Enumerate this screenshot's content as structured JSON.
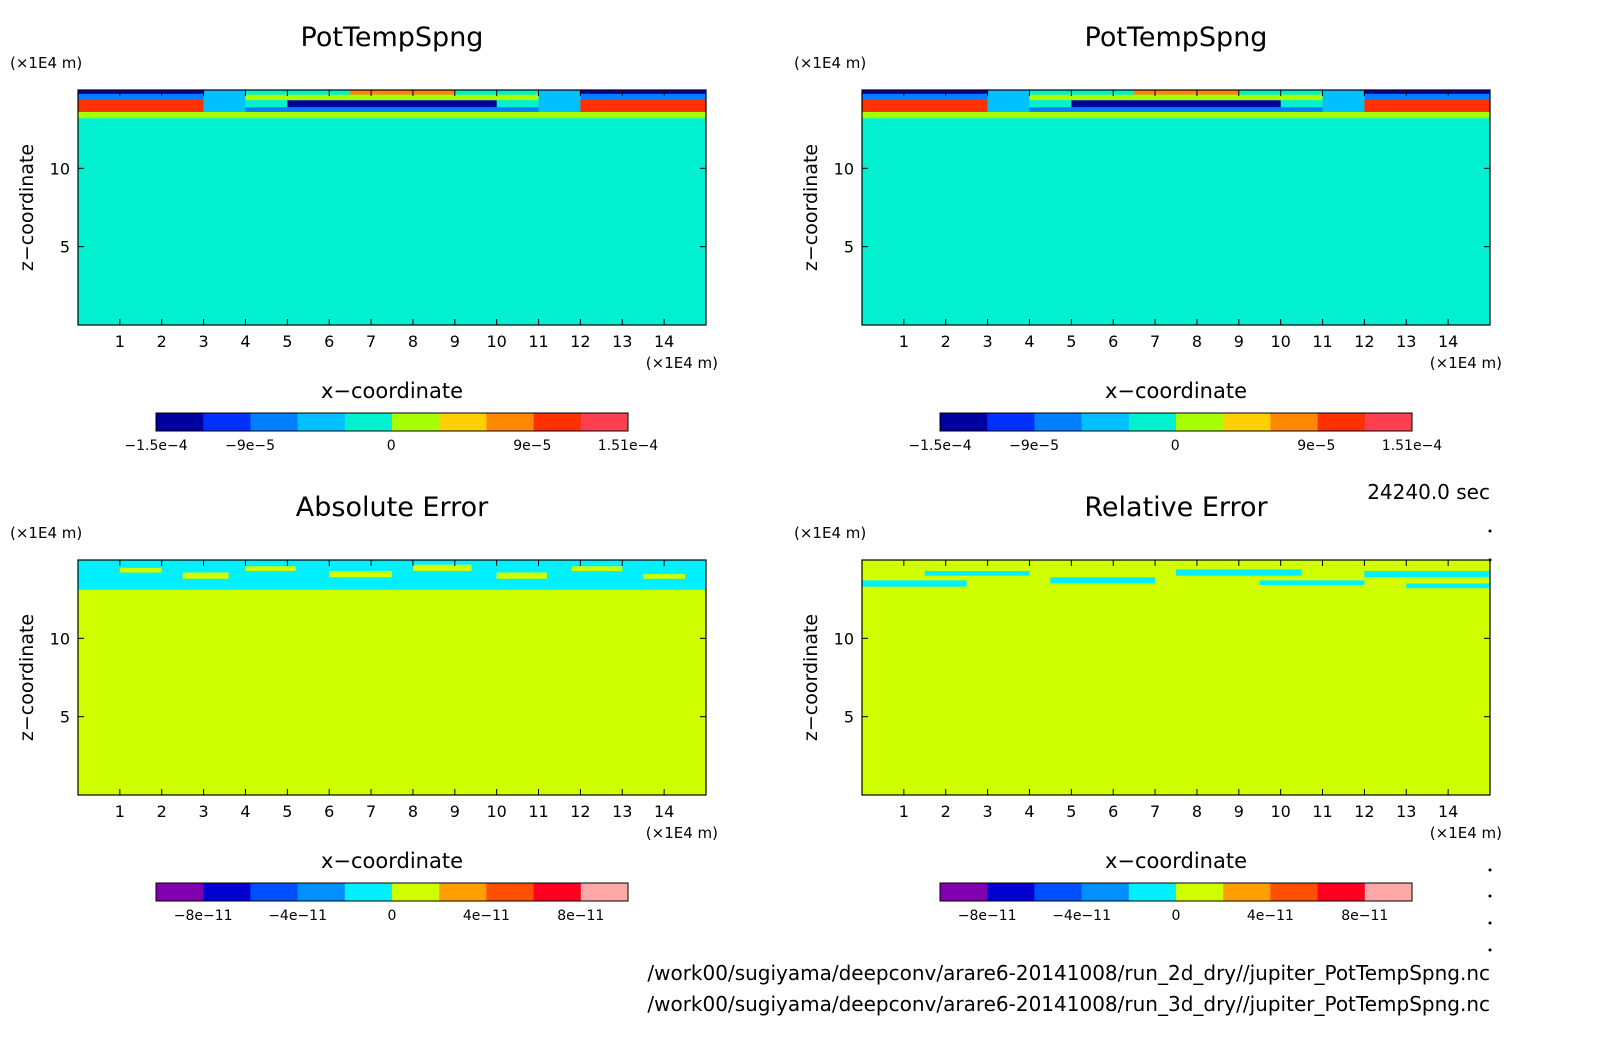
{
  "figure": {
    "time_label": "24240.0 sec",
    "file_paths": [
      "/work00/sugiyama/deepconv/arare6-20141008/run_2d_dry//jupiter_PotTempSpng.nc",
      "/work00/sugiyama/deepconv/arare6-20141008/run_3d_dry//jupiter_PotTempSpng.nc"
    ]
  },
  "colorbars": {
    "top": {
      "colors": [
        "#0000a0",
        "#0030ff",
        "#0080ff",
        "#00c0ff",
        "#00f0d0",
        "#a8ff00",
        "#ffd000",
        "#ff8800",
        "#ff3000",
        "#ff4050"
      ],
      "ticks": [
        {
          "value": -0.00015,
          "label": "-1.5e-4"
        },
        {
          "value": -9e-05,
          "label": "-9e-5"
        },
        {
          "value": 0,
          "label": "0"
        },
        {
          "value": 9e-05,
          "label": "9e-5"
        },
        {
          "value": 0.000151,
          "label": "1.51e-4"
        }
      ],
      "range": [
        -0.00015,
        0.000151
      ]
    },
    "bottom": {
      "colors": [
        "#8000b0",
        "#0000d0",
        "#0050ff",
        "#0090ff",
        "#00f0ff",
        "#d0ff00",
        "#ffa000",
        "#ff5000",
        "#ff0020",
        "#ffa8a8"
      ],
      "ticks": [
        {
          "value": -8e-11,
          "label": "-8e-11"
        },
        {
          "value": -4e-11,
          "label": "-4e-11"
        },
        {
          "value": 0,
          "label": "0"
        },
        {
          "value": 4e-11,
          "label": "4e-11"
        },
        {
          "value": 8e-11,
          "label": "8e-11"
        }
      ],
      "range": [
        -1e-10,
        1e-10
      ]
    }
  },
  "chart_data": [
    {
      "type": "heatmap",
      "title": "PotTempSpng",
      "xlabel": "x-coordinate",
      "ylabel": "z-coordinate",
      "x_unit": "(x1E4 m)",
      "y_unit": "(x1E4 m)",
      "xlim": [
        0,
        15
      ],
      "ylim": [
        0,
        15
      ],
      "xticks": [
        1,
        2,
        3,
        4,
        5,
        6,
        7,
        8,
        9,
        10,
        11,
        12,
        13,
        14
      ],
      "yticks": [
        5,
        10
      ],
      "colorbar": "top",
      "background_value": 0,
      "bands": [
        {
          "x": [
            0,
            15
          ],
          "z": [
            13.2,
            13.6
          ],
          "value": 2e-05
        },
        {
          "x": [
            0,
            3
          ],
          "z": [
            13.6,
            14.4
          ],
          "value": 0.00012
        },
        {
          "x": [
            0,
            3
          ],
          "z": [
            14.4,
            14.75
          ],
          "value": -6e-05
        },
        {
          "x": [
            0,
            3
          ],
          "z": [
            14.75,
            15
          ],
          "value": -0.00013
        },
        {
          "x": [
            3,
            4
          ],
          "z": [
            13.6,
            15
          ],
          "value": -3e-05
        },
        {
          "x": [
            4,
            11
          ],
          "z": [
            13.6,
            13.9
          ],
          "value": -6e-05
        },
        {
          "x": [
            5,
            10
          ],
          "z": [
            13.9,
            14.35
          ],
          "value": -0.00014
        },
        {
          "x": [
            4,
            11
          ],
          "z": [
            14.35,
            14.7
          ],
          "value": 3e-05
        },
        {
          "x": [
            6.5,
            9
          ],
          "z": [
            14.7,
            15
          ],
          "value": 8e-05
        },
        {
          "x": [
            11,
            12
          ],
          "z": [
            13.6,
            15
          ],
          "value": -3e-05
        },
        {
          "x": [
            12,
            15
          ],
          "z": [
            13.6,
            14.4
          ],
          "value": 0.00012
        },
        {
          "x": [
            12,
            15
          ],
          "z": [
            14.4,
            14.75
          ],
          "value": -6e-05
        },
        {
          "x": [
            12,
            15
          ],
          "z": [
            14.75,
            15
          ],
          "value": -0.00013
        }
      ]
    },
    {
      "type": "heatmap",
      "title": "PotTempSpng",
      "xlabel": "x-coordinate",
      "ylabel": "z-coordinate",
      "x_unit": "(x1E4 m)",
      "y_unit": "(x1E4 m)",
      "xlim": [
        0,
        15
      ],
      "ylim": [
        0,
        15
      ],
      "xticks": [
        1,
        2,
        3,
        4,
        5,
        6,
        7,
        8,
        9,
        10,
        11,
        12,
        13,
        14
      ],
      "yticks": [
        5,
        10
      ],
      "colorbar": "top",
      "background_value": 0,
      "bands": [
        {
          "x": [
            0,
            15
          ],
          "z": [
            13.2,
            13.6
          ],
          "value": 2e-05
        },
        {
          "x": [
            0,
            3
          ],
          "z": [
            13.6,
            14.4
          ],
          "value": 0.00012
        },
        {
          "x": [
            0,
            3
          ],
          "z": [
            14.4,
            14.75
          ],
          "value": -6e-05
        },
        {
          "x": [
            0,
            3
          ],
          "z": [
            14.75,
            15
          ],
          "value": -0.00013
        },
        {
          "x": [
            3,
            4
          ],
          "z": [
            13.6,
            15
          ],
          "value": -3e-05
        },
        {
          "x": [
            4,
            11
          ],
          "z": [
            13.6,
            13.9
          ],
          "value": -6e-05
        },
        {
          "x": [
            5,
            10
          ],
          "z": [
            13.9,
            14.35
          ],
          "value": -0.00014
        },
        {
          "x": [
            4,
            11
          ],
          "z": [
            14.35,
            14.7
          ],
          "value": 3e-05
        },
        {
          "x": [
            6.5,
            9
          ],
          "z": [
            14.7,
            15
          ],
          "value": 8e-05
        },
        {
          "x": [
            11,
            12
          ],
          "z": [
            13.6,
            15
          ],
          "value": -3e-05
        },
        {
          "x": [
            12,
            15
          ],
          "z": [
            13.6,
            14.4
          ],
          "value": 0.00012
        },
        {
          "x": [
            12,
            15
          ],
          "z": [
            14.4,
            14.75
          ],
          "value": -6e-05
        },
        {
          "x": [
            12,
            15
          ],
          "z": [
            14.75,
            15
          ],
          "value": -0.00013
        }
      ]
    },
    {
      "type": "heatmap",
      "title": "Absolute Error",
      "xlabel": "x-coordinate",
      "ylabel": "z-coordinate",
      "x_unit": "(x1E4 m)",
      "y_unit": "(x1E4 m)",
      "xlim": [
        0,
        15
      ],
      "ylim": [
        0,
        15
      ],
      "xticks": [
        1,
        2,
        3,
        4,
        5,
        6,
        7,
        8,
        9,
        10,
        11,
        12,
        13,
        14
      ],
      "yticks": [
        5,
        10
      ],
      "colorbar": "bottom",
      "background_value": 0,
      "bands": [
        {
          "x": [
            0,
            15
          ],
          "z": [
            13.1,
            15
          ],
          "value": -2e-11
        },
        {
          "x": [
            1,
            2
          ],
          "z": [
            14.2,
            14.5
          ],
          "value": 0
        },
        {
          "x": [
            2.5,
            3.6
          ],
          "z": [
            13.8,
            14.2
          ],
          "value": 0
        },
        {
          "x": [
            4,
            5.2
          ],
          "z": [
            14.3,
            14.6
          ],
          "value": 0
        },
        {
          "x": [
            6,
            7.5
          ],
          "z": [
            13.9,
            14.3
          ],
          "value": 0
        },
        {
          "x": [
            8,
            9.4
          ],
          "z": [
            14.3,
            14.7
          ],
          "value": 0
        },
        {
          "x": [
            10,
            11.2
          ],
          "z": [
            13.8,
            14.2
          ],
          "value": 0
        },
        {
          "x": [
            11.8,
            13
          ],
          "z": [
            14.3,
            14.6
          ],
          "value": 0
        },
        {
          "x": [
            13.5,
            14.5
          ],
          "z": [
            13.8,
            14.1
          ],
          "value": 0
        }
      ]
    },
    {
      "type": "heatmap",
      "title": "Relative Error",
      "xlabel": "x-coordinate",
      "ylabel": "z-coordinate",
      "x_unit": "(x1E4 m)",
      "y_unit": "(x1E4 m)",
      "xlim": [
        0,
        15
      ],
      "ylim": [
        0,
        15
      ],
      "xticks": [
        1,
        2,
        3,
        4,
        5,
        6,
        7,
        8,
        9,
        10,
        11,
        12,
        13,
        14
      ],
      "yticks": [
        5,
        10
      ],
      "colorbar": "bottom",
      "background_value": 0,
      "bands": [
        {
          "x": [
            0,
            15
          ],
          "z": [
            13.1,
            15
          ],
          "value": 0
        },
        {
          "x": [
            0,
            2.5
          ],
          "z": [
            13.3,
            13.7
          ],
          "value": -2e-11
        },
        {
          "x": [
            1.5,
            4
          ],
          "z": [
            14,
            14.3
          ],
          "value": -2e-11
        },
        {
          "x": [
            4.5,
            7
          ],
          "z": [
            13.5,
            13.9
          ],
          "value": -2e-11
        },
        {
          "x": [
            7.5,
            10.5
          ],
          "z": [
            14,
            14.4
          ],
          "value": -2e-11
        },
        {
          "x": [
            9.5,
            12
          ],
          "z": [
            13.4,
            13.7
          ],
          "value": -2e-11
        },
        {
          "x": [
            12,
            15
          ],
          "z": [
            13.9,
            14.3
          ],
          "value": -2e-11
        },
        {
          "x": [
            13,
            15
          ],
          "z": [
            13.2,
            13.5
          ],
          "value": -2e-11
        }
      ]
    }
  ]
}
